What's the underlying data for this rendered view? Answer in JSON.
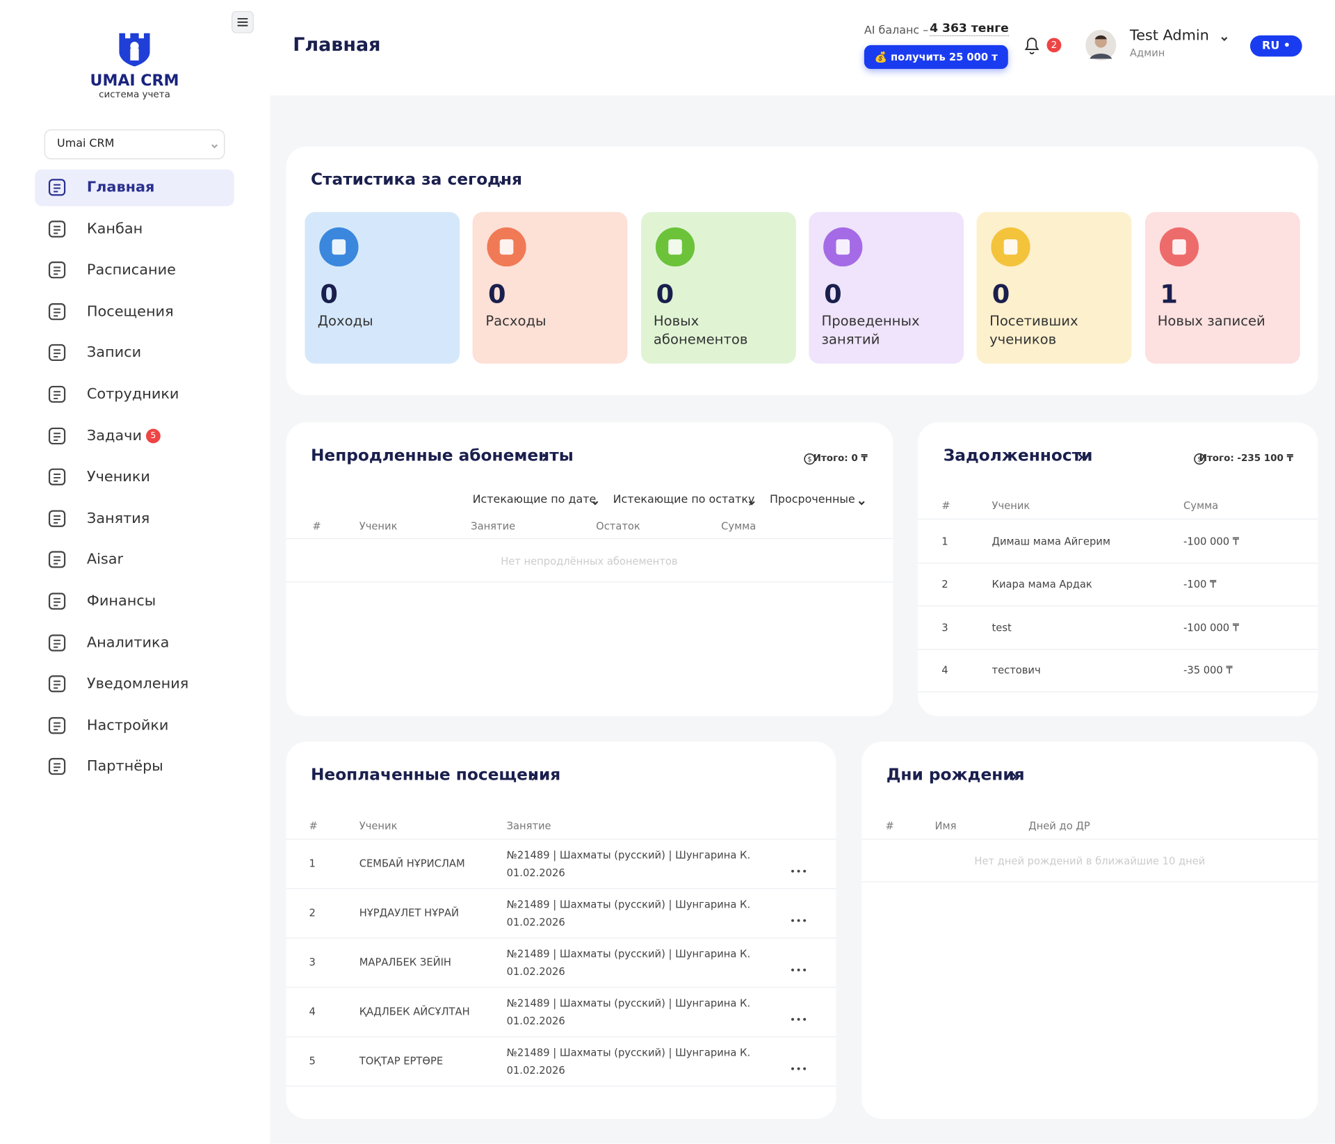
{
  "sidebar": {
    "logo_title": "UMAI CRM",
    "logo_subtitle": "система учета",
    "company_select": "Umai CRM",
    "menu": [
      {
        "label": "Главная",
        "active": true
      },
      {
        "label": "Канбан"
      },
      {
        "label": "Расписание"
      },
      {
        "label": "Посещения"
      },
      {
        "label": "Записи"
      },
      {
        "label": "Сотрудники"
      },
      {
        "label": "Задачи",
        "badge": 5
      },
      {
        "label": "Ученики"
      },
      {
        "label": "Занятия"
      },
      {
        "label": "Aisar"
      },
      {
        "label": "Финансы"
      },
      {
        "label": "Аналитика"
      },
      {
        "label": "Уведомления"
      },
      {
        "label": "Настройки"
      },
      {
        "label": "Партнёры"
      }
    ]
  },
  "header": {
    "title": "Главная",
    "ai_balance_label": "AI баланс –",
    "ai_balance_value": "4 363 тенге",
    "ai_button": "💰 получить 25 000 т",
    "notifications": 2,
    "user_name": "Test Admin",
    "user_role": "Админ",
    "language": "RU •"
  },
  "stats": {
    "title": "Статистика за сегодня",
    "cards": [
      {
        "value": 0,
        "label": "Доходы",
        "color": "#d5e8fb",
        "icon_color": "#3a87dd"
      },
      {
        "value": 0,
        "label": "Расходы",
        "color": "#fde0d6",
        "icon_color": "#f07a55"
      },
      {
        "value": 0,
        "label": "Новых абонементов",
        "color": "#e0f4d4",
        "icon_color": "#6cc33a"
      },
      {
        "value": 0,
        "label": "Проведенных занятий",
        "color": "#efe4fb",
        "icon_color": "#a56be6"
      },
      {
        "value": 0,
        "label": "Посетивших учеников",
        "color": "#fdf0cd",
        "icon_color": "#f4c33c"
      },
      {
        "value": 1,
        "label": "Новых записей",
        "color": "#fde0e0",
        "icon_color": "#ee6b6b"
      }
    ]
  },
  "unrenewed": {
    "title": "Непродленные абонементы",
    "total": "Итого: 0 ₸",
    "filters": [
      "Истекающие по дате",
      "Истекающие по остатку",
      "Просроченные"
    ],
    "columns": [
      "#",
      "Ученик",
      "Занятие",
      "Остаток",
      "Сумма"
    ],
    "empty": "Нет непродлённых абонементов"
  },
  "debts": {
    "title": "Задолженности",
    "total": "Итого: -235 100 ₸",
    "columns": [
      "#",
      "Ученик",
      "Сумма"
    ],
    "rows": [
      [
        1,
        "Димаш мама Айгерим",
        "-100 000 ₸"
      ],
      [
        2,
        "Киара мама Ардак",
        "-100 ₸"
      ],
      [
        3,
        "test",
        "-100 000 ₸"
      ],
      [
        4,
        "тестович",
        "-35 000 ₸"
      ]
    ]
  },
  "unpaid": {
    "title": "Неоплаченные посещения",
    "columns": [
      "#",
      "Ученик",
      "Занятие"
    ],
    "rows": [
      [
        1,
        "СЕМБАЙ НҰРИСЛАМ",
        "№21489 | Шахматы (русский) | Шунгарина К.",
        "01.02.2026"
      ],
      [
        2,
        "НҰРДАУЛЕТ НҰРАЙ",
        "№21489 | Шахматы (русский) | Шунгарина К.",
        "01.02.2026"
      ],
      [
        3,
        "МАРАЛБЕК ЗЕЙІН",
        "№21489 | Шахматы (русский) | Шунгарина К.",
        "01.02.2026"
      ],
      [
        4,
        "ҚАДЛБЕК АЙСҰЛТАН",
        "№21489 | Шахматы (русский) | Шунгарина К.",
        "01.02.2026"
      ],
      [
        5,
        "ТОҚТАР ЕРТӨРЕ",
        "№21489 | Шахматы (русский) | Шунгарина К.",
        "01.02.2026"
      ]
    ]
  },
  "birthdays": {
    "title": "Дни рождения",
    "columns": [
      "#",
      "Имя",
      "Дней до ДР"
    ],
    "empty": "Нет дней рождений в ближайшие 10 дней"
  }
}
